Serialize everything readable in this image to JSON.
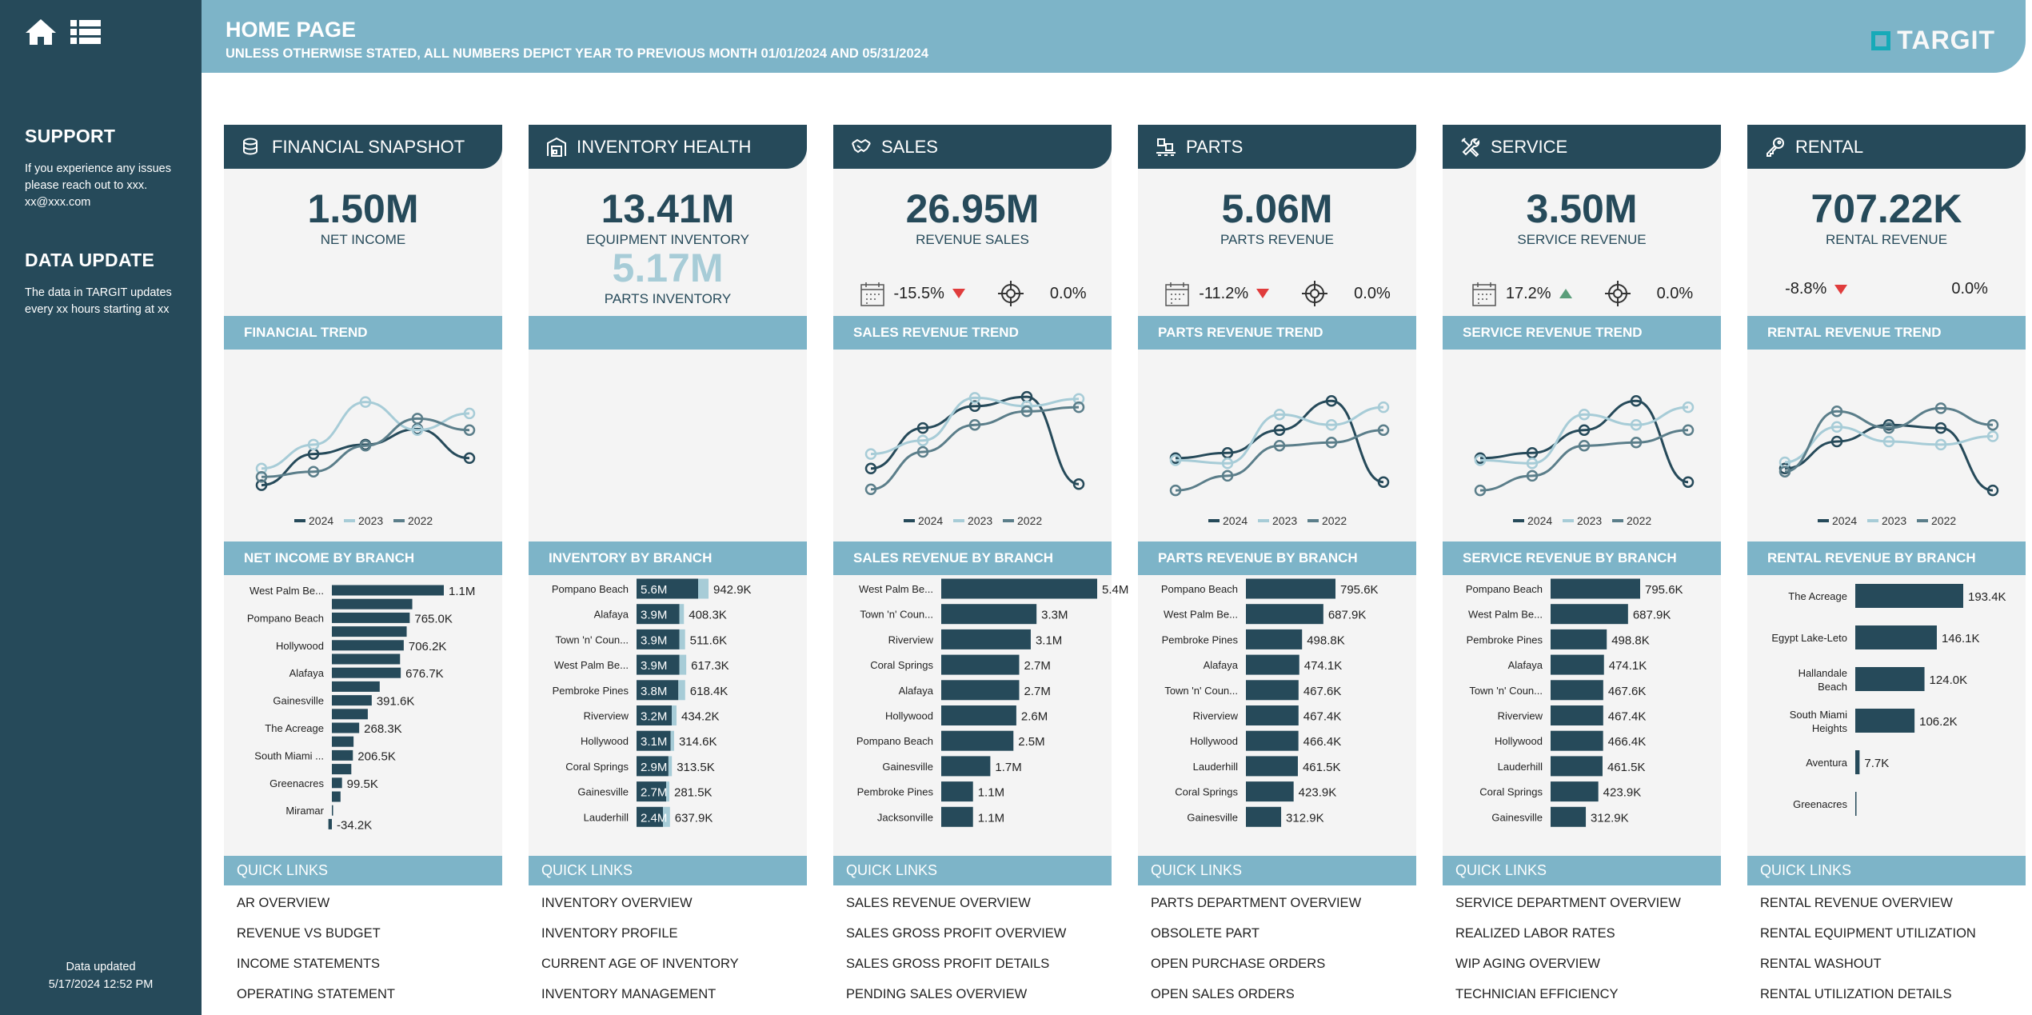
{
  "sidebar": {
    "support_title": "SUPPORT",
    "support_text": "If you experience any issues please reach out to xxx.",
    "support_email": "xx@xxx.com",
    "update_title": "DATA UPDATE",
    "update_text": "The data in TARGIT updates every xx hours starting at xx",
    "updated_label": "Data updated",
    "updated_time": "5/17/2024 12:52 PM",
    "icons": [
      "home-icon",
      "list-icon"
    ]
  },
  "header": {
    "title": "HOME PAGE",
    "subtitle": "UNLESS OTHERWISE STATED, ALL NUMBERS DEPICT YEAR TO PREVIOUS MONTH 01/01/2024 AND 05/31/2024",
    "logo": "TARGIT"
  },
  "colors": {
    "dark": "#264a5a",
    "light": "#a7ccd7",
    "mid": "#5b7e8a",
    "accent": "#7db4c8",
    "down": "#e03c3c",
    "up": "#5a9e7a"
  },
  "legend": [
    "2024",
    "2023",
    "2022"
  ],
  "columns": [
    {
      "title": "FINANCIAL SNAPSHOT",
      "icon": "coins-icon",
      "kpi": "1.50M",
      "kpi_label": "NET INCOME",
      "trend_title": "FINANCIAL TREND",
      "branch_title": "NET INCOME BY BRANCH",
      "links": [
        "AR OVERVIEW",
        "REVENUE VS BUDGET",
        "INCOME STATEMENTS",
        "OPERATING STATEMENT"
      ]
    },
    {
      "title": "INVENTORY HEALTH",
      "icon": "warehouse-icon",
      "kpi": "13.41M",
      "kpi_label": "EQUIPMENT INVENTORY",
      "kpi2": "5.17M",
      "kpi2_label": "PARTS INVENTORY",
      "trend_title": "",
      "branch_title": "INVENTORY BY BRANCH",
      "links": [
        "INVENTORY OVERVIEW",
        "INVENTORY PROFILE",
        "CURRENT AGE OF INVENTORY",
        "INVENTORY MANAGEMENT"
      ]
    },
    {
      "title": "SALES",
      "icon": "handshake-icon",
      "kpi": "26.95M",
      "kpi_label": "REVENUE SALES",
      "change": "-15.5%",
      "direction": "down",
      "target": "0.0%",
      "show_icons": true,
      "trend_title": "SALES REVENUE TREND",
      "branch_title": "SALES REVENUE BY BRANCH",
      "links": [
        "SALES REVENUE OVERVIEW",
        "SALES GROSS PROFIT OVERVIEW",
        "SALES GROSS PROFIT DETAILS",
        "PENDING SALES OVERVIEW"
      ]
    },
    {
      "title": "PARTS",
      "icon": "parts-pallet-icon",
      "kpi": "5.06M",
      "kpi_label": "PARTS REVENUE",
      "change": "-11.2%",
      "direction": "down",
      "target": "0.0%",
      "show_icons": true,
      "trend_title": "PARTS REVENUE TREND",
      "branch_title": "PARTS REVENUE BY BRANCH",
      "links": [
        "PARTS DEPARTMENT OVERVIEW",
        "OBSOLETE PART",
        "OPEN PURCHASE ORDERS",
        "OPEN SALES ORDERS"
      ]
    },
    {
      "title": "SERVICE",
      "icon": "tools-icon",
      "kpi": "3.50M",
      "kpi_label": "SERVICE REVENUE",
      "change": "17.2%",
      "direction": "up",
      "target": "0.0%",
      "show_icons": true,
      "trend_title": "SERVICE REVENUE TREND",
      "branch_title": "SERVICE REVENUE BY BRANCH",
      "links": [
        "SERVICE DEPARTMENT OVERVIEW",
        "REALIZED LABOR RATES",
        "WIP AGING OVERVIEW",
        "TECHNICIAN EFFICIENCY"
      ]
    },
    {
      "title": "RENTAL",
      "icon": "key-icon",
      "kpi": "707.22K",
      "kpi_label": "RENTAL REVENUE",
      "change": "-8.8%",
      "direction": "down",
      "target": "0.0%",
      "show_icons": false,
      "trend_title": "RENTAL REVENUE TREND",
      "branch_title": "RENTAL REVENUE BY BRANCH",
      "links": [
        "RENTAL REVENUE OVERVIEW",
        "RENTAL EQUIPMENT UTILIZATION",
        "RENTAL WASHOUT",
        "RENTAL UTILIZATION DETAILS"
      ]
    }
  ],
  "chart_data": [
    {
      "type": "line",
      "chart": "FINANCIAL TREND",
      "series": [
        {
          "name": "2024",
          "values": [
            8,
            38,
            47,
            62,
            34
          ]
        },
        {
          "name": "2023",
          "values": [
            24,
            47,
            88,
            61,
            77
          ]
        },
        {
          "name": "2022",
          "values": [
            16,
            21,
            46,
            72,
            61
          ]
        }
      ],
      "legend": "bottom",
      "grid": false
    },
    null,
    {
      "type": "line",
      "chart": "SALES REVENUE TREND",
      "series": [
        {
          "name": "2024",
          "values": [
            24,
            63,
            84,
            93,
            9
          ]
        },
        {
          "name": "2023",
          "values": [
            38,
            51,
            92,
            84,
            91
          ]
        },
        {
          "name": "2022",
          "values": [
            4,
            40,
            66,
            79,
            83
          ]
        }
      ],
      "legend": "bottom",
      "grid": false
    },
    {
      "type": "line",
      "chart": "PARTS REVENUE TREND",
      "series": [
        {
          "name": "2024",
          "values": [
            34,
            39,
            61,
            89,
            11
          ]
        },
        {
          "name": "2023",
          "values": [
            32,
            29,
            76,
            66,
            83
          ]
        },
        {
          "name": "2022",
          "values": [
            3,
            17,
            46,
            49,
            61
          ]
        }
      ],
      "legend": "bottom",
      "grid": false
    },
    {
      "type": "line",
      "chart": "SERVICE REVENUE TREND",
      "series": [
        {
          "name": "2024",
          "values": [
            34,
            39,
            61,
            89,
            11
          ]
        },
        {
          "name": "2023",
          "values": [
            32,
            29,
            76,
            66,
            83
          ]
        },
        {
          "name": "2022",
          "values": [
            3,
            17,
            46,
            49,
            61
          ]
        }
      ],
      "legend": "bottom",
      "grid": false
    },
    {
      "type": "line",
      "chart": "RENTAL REVENUE TREND",
      "series": [
        {
          "name": "2024",
          "values": [
            24,
            50,
            66,
            63,
            3
          ]
        },
        {
          "name": "2023",
          "values": [
            30,
            64,
            50,
            47,
            55
          ]
        },
        {
          "name": "2022",
          "values": [
            21,
            79,
            63,
            82,
            66
          ]
        }
      ],
      "legend": "bottom",
      "grid": false
    }
  ],
  "branch_data": [
    {
      "type": "bar",
      "items": [
        {
          "name": "West Palm Be...",
          "value": 1100,
          "label": "1.1M"
        },
        {
          "name": "",
          "value": 790,
          "label": ""
        },
        {
          "name": "Pompano Beach",
          "value": 765,
          "label": "765.0K"
        },
        {
          "name": "",
          "value": 735,
          "label": ""
        },
        {
          "name": "Hollywood",
          "value": 706.2,
          "label": "706.2K"
        },
        {
          "name": "",
          "value": 670,
          "label": ""
        },
        {
          "name": "Alafaya",
          "value": 676.7,
          "label": "676.7K"
        },
        {
          "name": "",
          "value": 470,
          "label": ""
        },
        {
          "name": "Gainesville",
          "value": 391.6,
          "label": "391.6K"
        },
        {
          "name": "",
          "value": 353,
          "label": ""
        },
        {
          "name": "The Acreage",
          "value": 268.3,
          "label": "268.3K"
        },
        {
          "name": "",
          "value": 213,
          "label": ""
        },
        {
          "name": "South Miami ...",
          "value": 206.5,
          "label": "206.5K"
        },
        {
          "name": "",
          "value": 191,
          "label": ""
        },
        {
          "name": "Greenacres",
          "value": 99.5,
          "label": "99.5K"
        },
        {
          "name": "",
          "value": 85,
          "label": ""
        },
        {
          "name": "Miramar",
          "value": 2,
          "label": ""
        },
        {
          "name": "",
          "value": -34.2,
          "label": "-34.2K"
        }
      ]
    },
    {
      "type": "stacked-bar",
      "series": [
        "Equipment",
        "Parts"
      ],
      "items": [
        {
          "name": "Pompano Beach",
          "value": 5600,
          "label": "5.6M",
          "value2": 942.9,
          "label2": "942.9K"
        },
        {
          "name": "Alafaya",
          "value": 3900,
          "label": "3.9M",
          "value2": 408.3,
          "label2": "408.3K"
        },
        {
          "name": "Town 'n' Coun...",
          "value": 3900,
          "label": "3.9M",
          "value2": 511.6,
          "label2": "511.6K"
        },
        {
          "name": "West Palm Be...",
          "value": 3900,
          "label": "3.9M",
          "value2": 617.3,
          "label2": "617.3K"
        },
        {
          "name": "Pembroke Pines",
          "value": 3800,
          "label": "3.8M",
          "value2": 618.4,
          "label2": "618.4K"
        },
        {
          "name": "Riverview",
          "value": 3200,
          "label": "3.2M",
          "value2": 434.2,
          "label2": "434.2K"
        },
        {
          "name": "Hollywood",
          "value": 3100,
          "label": "3.1M",
          "value2": 314.6,
          "label2": "314.6K"
        },
        {
          "name": "Coral Springs",
          "value": 2900,
          "label": "2.9M",
          "value2": 313.5,
          "label2": "313.5K"
        },
        {
          "name": "Gainesville",
          "value": 2700,
          "label": "2.7M",
          "value2": 281.5,
          "label2": "281.5K"
        },
        {
          "name": "Lauderhill",
          "value": 2400,
          "label": "2.4M",
          "value2": 637.9,
          "label2": "637.9K"
        }
      ]
    },
    {
      "type": "bar",
      "items": [
        {
          "name": "West Palm Be...",
          "value": 5400,
          "label": "5.4M"
        },
        {
          "name": "Town 'n' Coun...",
          "value": 3300,
          "label": "3.3M"
        },
        {
          "name": "Riverview",
          "value": 3100,
          "label": "3.1M"
        },
        {
          "name": "Coral Springs",
          "value": 2700,
          "label": "2.7M"
        },
        {
          "name": "Alafaya",
          "value": 2700,
          "label": "2.7M"
        },
        {
          "name": "Hollywood",
          "value": 2600,
          "label": "2.6M"
        },
        {
          "name": "Pompano Beach",
          "value": 2500,
          "label": "2.5M"
        },
        {
          "name": "Gainesville",
          "value": 1700,
          "label": "1.7M"
        },
        {
          "name": "Pembroke Pines",
          "value": 1100,
          "label": "1.1M"
        },
        {
          "name": "Jacksonville",
          "value": 1100,
          "label": "1.1M"
        }
      ]
    },
    {
      "type": "bar",
      "items": [
        {
          "name": "Pompano Beach",
          "value": 795.6,
          "label": "795.6K"
        },
        {
          "name": "West Palm Be...",
          "value": 687.9,
          "label": "687.9K"
        },
        {
          "name": "Pembroke Pines",
          "value": 498.8,
          "label": "498.8K"
        },
        {
          "name": "Alafaya",
          "value": 474.1,
          "label": "474.1K"
        },
        {
          "name": "Town 'n' Coun...",
          "value": 467.6,
          "label": "467.6K"
        },
        {
          "name": "Riverview",
          "value": 467.4,
          "label": "467.4K"
        },
        {
          "name": "Hollywood",
          "value": 466.4,
          "label": "466.4K"
        },
        {
          "name": "Lauderhill",
          "value": 461.5,
          "label": "461.5K"
        },
        {
          "name": "Coral Springs",
          "value": 423.9,
          "label": "423.9K"
        },
        {
          "name": "Gainesville",
          "value": 312.9,
          "label": "312.9K"
        }
      ]
    },
    {
      "type": "bar",
      "items": [
        {
          "name": "Pompano Beach",
          "value": 795.6,
          "label": "795.6K"
        },
        {
          "name": "West Palm Be...",
          "value": 687.9,
          "label": "687.9K"
        },
        {
          "name": "Pembroke Pines",
          "value": 498.8,
          "label": "498.8K"
        },
        {
          "name": "Alafaya",
          "value": 474.1,
          "label": "474.1K"
        },
        {
          "name": "Town 'n' Coun...",
          "value": 467.6,
          "label": "467.6K"
        },
        {
          "name": "Riverview",
          "value": 467.4,
          "label": "467.4K"
        },
        {
          "name": "Hollywood",
          "value": 466.4,
          "label": "466.4K"
        },
        {
          "name": "Lauderhill",
          "value": 461.5,
          "label": "461.5K"
        },
        {
          "name": "Coral Springs",
          "value": 423.9,
          "label": "423.9K"
        },
        {
          "name": "Gainesville",
          "value": 312.9,
          "label": "312.9K"
        }
      ]
    },
    {
      "type": "bar",
      "items": [
        {
          "name": "The Acreage",
          "value": 193.4,
          "label": "193.4K"
        },
        {
          "name": "Egypt Lake-Leto",
          "value": 146.1,
          "label": "146.1K"
        },
        {
          "name": "Hallandale Beach",
          "value": 124.0,
          "label": "124.0K"
        },
        {
          "name": "South Miami Heights",
          "value": 106.2,
          "label": "106.2K"
        },
        {
          "name": "Aventura",
          "value": 7.7,
          "label": "7.7K"
        },
        {
          "name": "Greenacres",
          "value": 0,
          "label": ""
        }
      ]
    }
  ]
}
